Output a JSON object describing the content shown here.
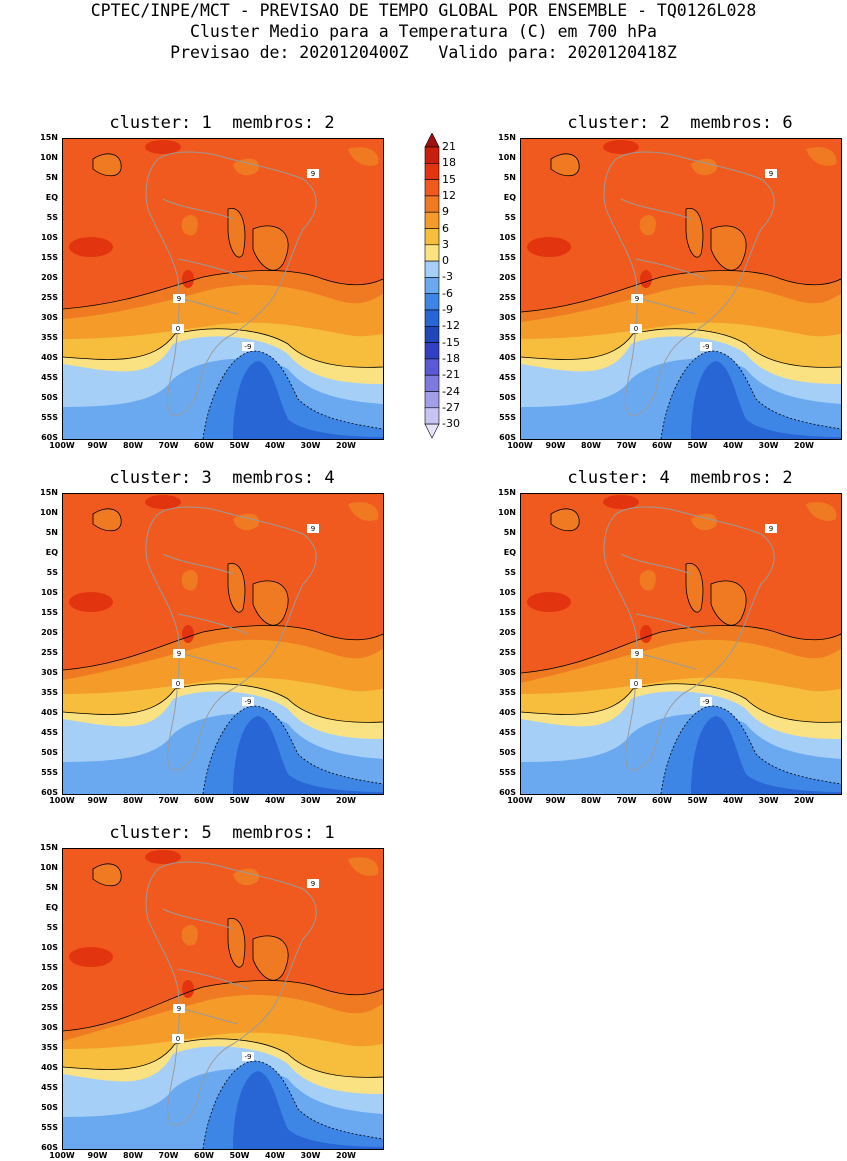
{
  "header": {
    "line1": "CPTEC/INPE/MCT - PREVISAO DE TEMPO GLOBAL POR ENSEMBLE - TQ0126L028",
    "line2": "Cluster Medio para a Temperatura (C) em 700 hPa",
    "line3": "Previsao de: 2020120400Z   Valido para: 2020120418Z"
  },
  "panels": [
    {
      "title": "cluster: 1  membros: 2"
    },
    {
      "title": "cluster: 2  membros: 6"
    },
    {
      "title": "cluster: 3  membros: 4"
    },
    {
      "title": "cluster: 4  membros: 2"
    },
    {
      "title": "cluster: 5  membros: 1"
    }
  ],
  "axes": {
    "lat_labels": [
      "15N",
      "10N",
      "5N",
      "EQ",
      "5S",
      "10S",
      "15S",
      "20S",
      "25S",
      "30S",
      "35S",
      "40S",
      "45S",
      "50S",
      "55S",
      "60S"
    ],
    "lon_labels": [
      "100W",
      "90W",
      "80W",
      "70W",
      "60W",
      "50W",
      "40W",
      "30W",
      "20W"
    ]
  },
  "contour_labels": {
    "warm": "9",
    "zero": "0",
    "cold": "-9"
  },
  "colorbar": {
    "levels": [
      "21",
      "18",
      "15",
      "12",
      "9",
      "6",
      "3",
      "0",
      "-3",
      "-6",
      "-9",
      "-12",
      "-15",
      "-18",
      "-21",
      "-24",
      "-27",
      "-30"
    ],
    "colors": [
      "#a01010",
      "#c81e0f",
      "#e2340f",
      "#f05a1e",
      "#f07a22",
      "#f49b2a",
      "#f7bd3c",
      "#fae282",
      "#a6cff7",
      "#6aa9f0",
      "#3d86e6",
      "#2766d4",
      "#1f47b8",
      "#3340c4",
      "#5a59d6",
      "#7d7ae0",
      "#a19fea",
      "#c6c4f2",
      "#e6e4f8"
    ]
  },
  "colors": {
    "land_outline": "#9a9a9a",
    "contour": "#000000"
  }
}
